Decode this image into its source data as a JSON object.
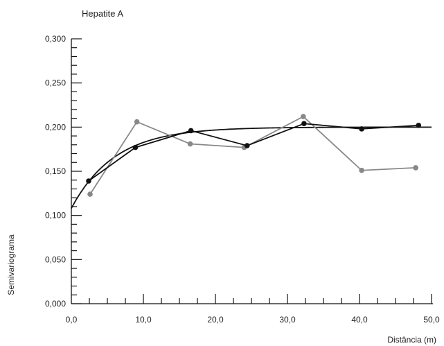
{
  "chart_data": {
    "type": "line",
    "title": "Hepatite A",
    "xlabel": "Distância (m)",
    "ylabel": "Semivariograma",
    "xlim": [
      0,
      50
    ],
    "ylim": [
      0,
      0.3
    ],
    "x_ticks": [
      0,
      10,
      20,
      30,
      40,
      50
    ],
    "x_tick_labels": [
      "0,0",
      "10,0",
      "20,0",
      "30,0",
      "40,0",
      "50,0"
    ],
    "y_ticks": [
      0,
      0.05,
      0.1,
      0.15,
      0.2,
      0.25,
      0.3
    ],
    "y_tick_labels": [
      "0,000",
      "0,050",
      "0,100",
      "0,150",
      "0,200",
      "0,250",
      "0,300"
    ],
    "grid": false,
    "series": [
      {
        "color": "#888888",
        "marker": "circle",
        "points": [
          {
            "x": 2.6,
            "y": 0.124
          },
          {
            "x": 9.1,
            "y": 0.206
          },
          {
            "x": 16.5,
            "y": 0.181
          },
          {
            "x": 24.0,
            "y": 0.177
          },
          {
            "x": 32.2,
            "y": 0.212
          },
          {
            "x": 40.3,
            "y": 0.151
          },
          {
            "x": 47.8,
            "y": 0.154
          }
        ]
      },
      {
        "color": "#111111",
        "marker": "circle",
        "points": [
          {
            "x": 2.4,
            "y": 0.139
          },
          {
            "x": 8.9,
            "y": 0.177
          },
          {
            "x": 16.6,
            "y": 0.196
          },
          {
            "x": 24.4,
            "y": 0.179
          },
          {
            "x": 32.3,
            "y": 0.204
          },
          {
            "x": 40.3,
            "y": 0.198
          },
          {
            "x": 48.2,
            "y": 0.202
          }
        ]
      }
    ],
    "fitted_model": {
      "color": "#111111",
      "nugget": 0.108,
      "sill": 0.2,
      "range": 18,
      "x_end": 50
    }
  }
}
